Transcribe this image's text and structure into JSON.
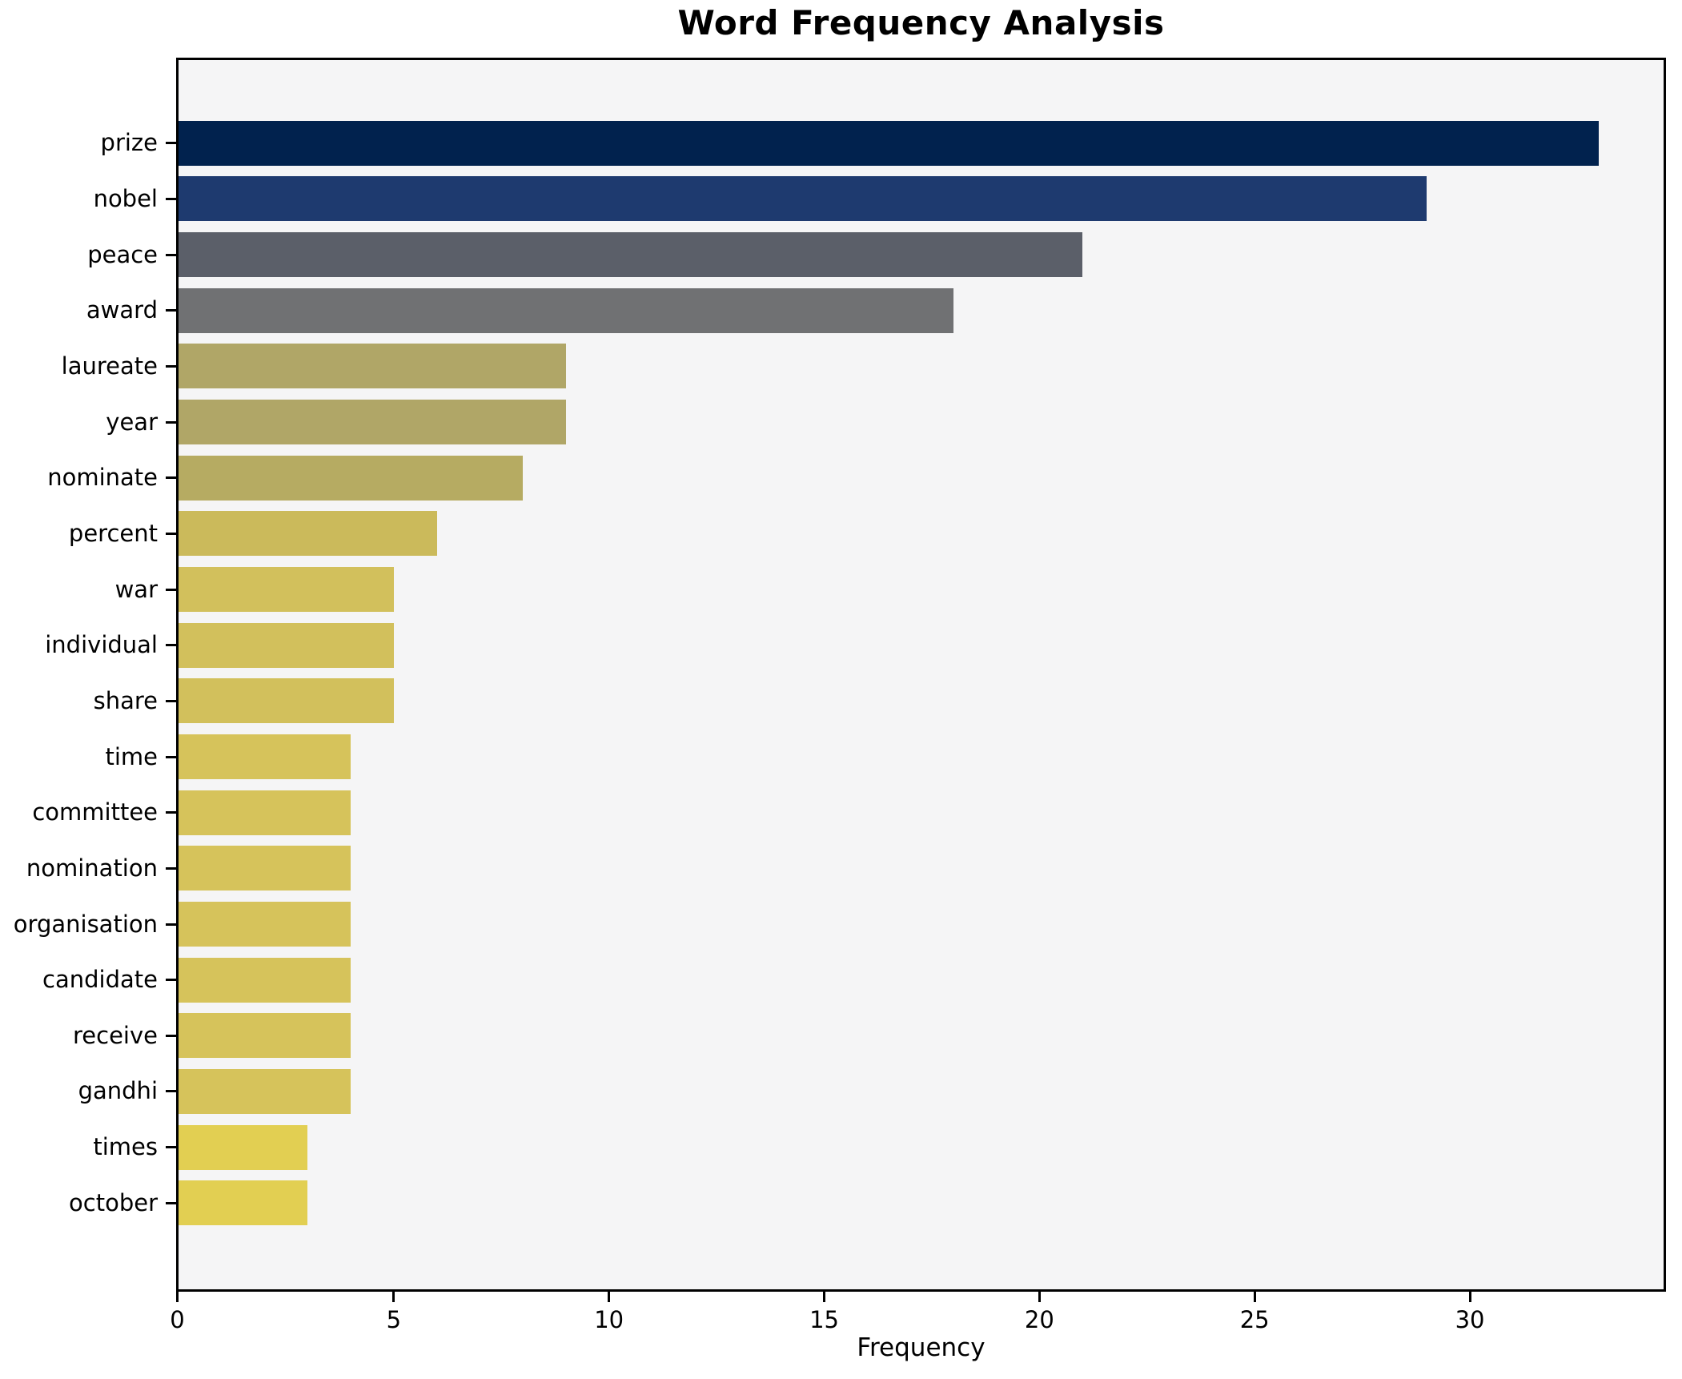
{
  "title": "Word Frequency Analysis",
  "xlabel": "Frequency",
  "chart_data": {
    "type": "bar",
    "orientation": "horizontal",
    "title": "Word Frequency Analysis",
    "xlabel": "Frequency",
    "ylabel": "",
    "grid": false,
    "legend": false,
    "plot_bg": "#f5f5f6",
    "figure_bg": "#ffffff",
    "spine_color": "#000000",
    "xlim": [
      0,
      34.5
    ],
    "xticks": [
      0,
      5,
      10,
      15,
      20,
      25,
      30
    ],
    "categories": [
      "prize",
      "nobel",
      "peace",
      "award",
      "laureate",
      "year",
      "nominate",
      "percent",
      "war",
      "individual",
      "share",
      "time",
      "committee",
      "nomination",
      "organisation",
      "candidate",
      "receive",
      "gandhi",
      "times",
      "october"
    ],
    "values": [
      33,
      29,
      21,
      18,
      9,
      9,
      8,
      6,
      5,
      5,
      5,
      4,
      4,
      4,
      4,
      4,
      4,
      4,
      3,
      3
    ],
    "bar_colors": [
      "#01224e",
      "#1e3a6f",
      "#5b5f69",
      "#707173",
      "#b0a667",
      "#b0a667",
      "#b6ab62",
      "#cbba5b",
      "#d2c05c",
      "#d2c05c",
      "#d2c05c",
      "#d6c35b",
      "#d6c35b",
      "#d6c35b",
      "#d6c35b",
      "#d6c35b",
      "#d6c35b",
      "#d6c35b",
      "#e2cf52",
      "#e2cf52"
    ]
  }
}
